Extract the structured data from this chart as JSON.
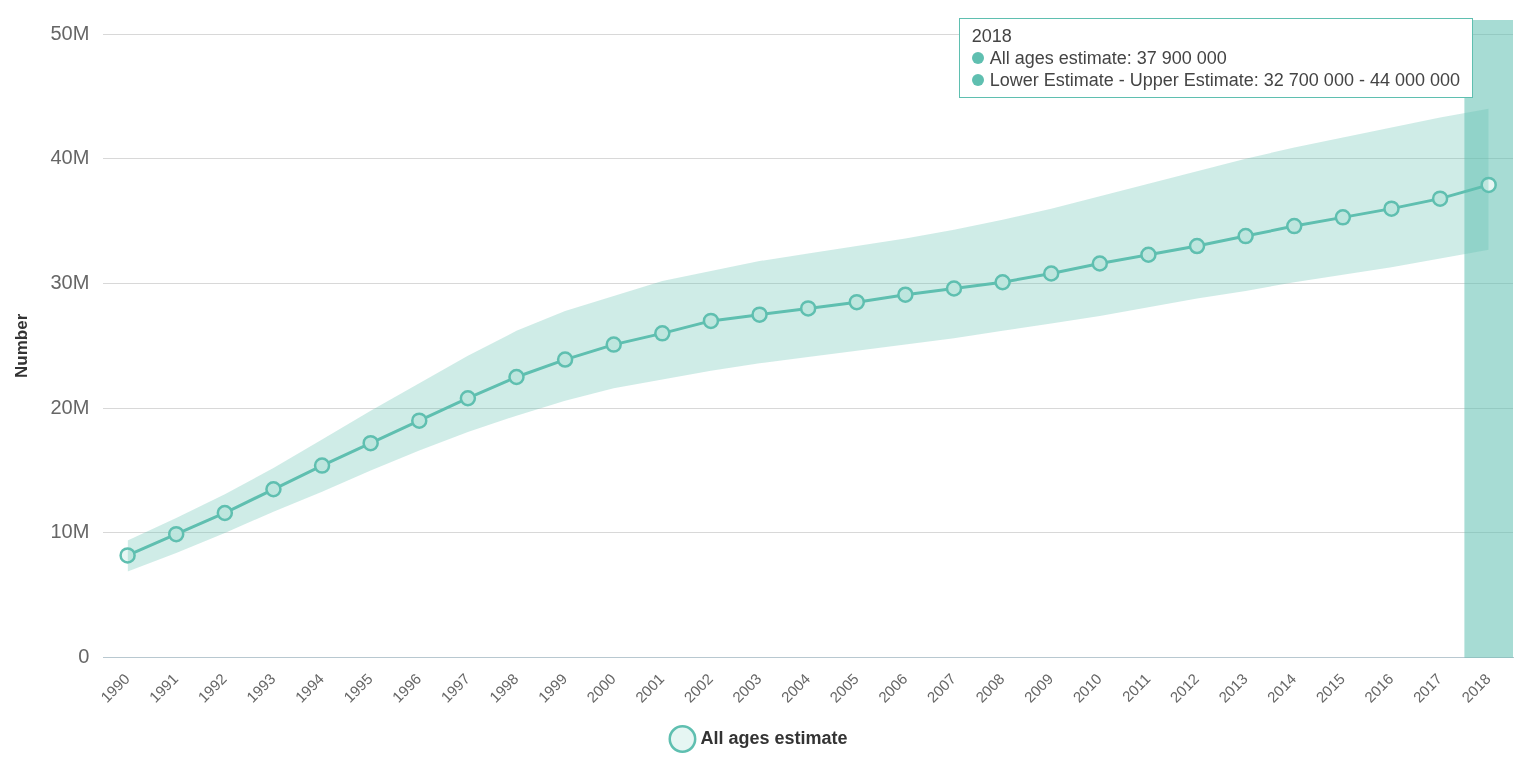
{
  "chart_data": {
    "type": "line",
    "ylabel": "Number",
    "categories": [
      "1990",
      "1991",
      "1992",
      "1993",
      "1994",
      "1995",
      "1996",
      "1997",
      "1998",
      "1999",
      "2000",
      "2001",
      "2002",
      "2003",
      "2004",
      "2005",
      "2006",
      "2007",
      "2008",
      "2009",
      "2010",
      "2011",
      "2012",
      "2013",
      "2014",
      "2015",
      "2016",
      "2017",
      "2018"
    ],
    "series": [
      {
        "name": "All ages estimate",
        "color": "#5fbfb0",
        "values": [
          8200000,
          9900000,
          11600000,
          13500000,
          15400000,
          17200000,
          19000000,
          20800000,
          22500000,
          23900000,
          25100000,
          26000000,
          27000000,
          27500000,
          28000000,
          28500000,
          29100000,
          29600000,
          30100000,
          30800000,
          31600000,
          32300000,
          33000000,
          33800000,
          34600000,
          35300000,
          36000000,
          36800000,
          37900000
        ],
        "lower": [
          6900000,
          8400000,
          10000000,
          11700000,
          13300000,
          15000000,
          16600000,
          18100000,
          19400000,
          20600000,
          21600000,
          22300000,
          23000000,
          23600000,
          24100000,
          24600000,
          25100000,
          25600000,
          26200000,
          26800000,
          27400000,
          28100000,
          28800000,
          29400000,
          30100000,
          30700000,
          31300000,
          32000000,
          32700000
        ],
        "upper": [
          9400000,
          11200000,
          13100000,
          15200000,
          17500000,
          19800000,
          22000000,
          24200000,
          26200000,
          27800000,
          29000000,
          30200000,
          31000000,
          31800000,
          32400000,
          33000000,
          33600000,
          34300000,
          35100000,
          36000000,
          37000000,
          38000000,
          39000000,
          40000000,
          40900000,
          41700000,
          42500000,
          43300000,
          44000000
        ]
      }
    ],
    "ylim": [
      0,
      50000000
    ],
    "yticks": [
      {
        "value": 0,
        "label": "0"
      },
      {
        "value": 10000000,
        "label": "10M"
      },
      {
        "value": 20000000,
        "label": "20M"
      },
      {
        "value": 30000000,
        "label": "30M"
      },
      {
        "value": 40000000,
        "label": "40M"
      },
      {
        "value": 50000000,
        "label": "50M"
      }
    ],
    "bands": [
      {
        "axis": "x",
        "from": "2018",
        "to": "2018",
        "color": "#5fbfb0"
      }
    ],
    "annotations": [
      "2018",
      "All ages estimate: 37 900 000",
      "Lower Estimate - Upper Estimate: 32 700 000 - 44 000 000"
    ],
    "grid": "y",
    "legend": "bottom",
    "marker": "circle",
    "line_style": "solid"
  }
}
